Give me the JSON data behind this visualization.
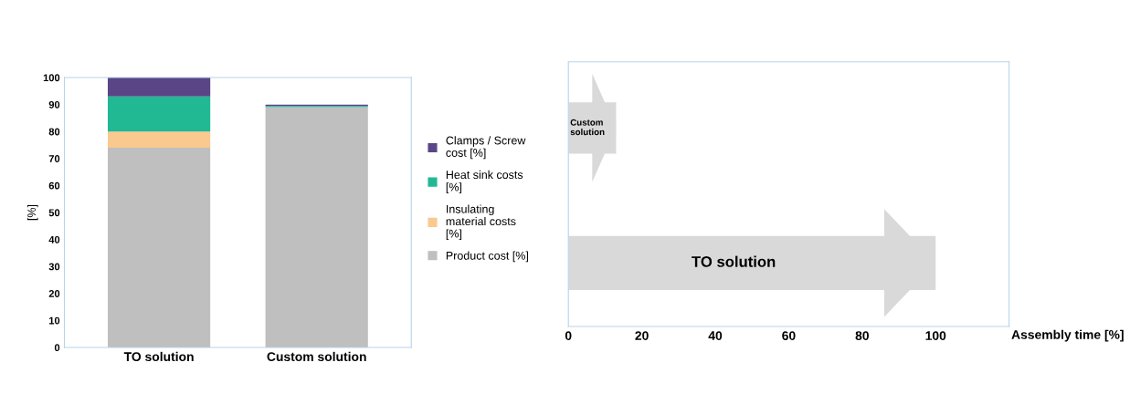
{
  "chart_data": [
    {
      "type": "bar",
      "stacked": true,
      "ylabel": "[%]",
      "categories": [
        "TO solution",
        "Custom solution"
      ],
      "ylim": [
        0,
        100
      ],
      "yticks": [
        0,
        10,
        20,
        30,
        40,
        50,
        60,
        70,
        80,
        90,
        100
      ],
      "legend": "right",
      "grid": false,
      "series": [
        {
          "name": "Product cost [%]",
          "color": "#bfbfbf",
          "values": [
            74,
            89
          ]
        },
        {
          "name": "Insulating material costs [%]",
          "color": "#f9c990",
          "values": [
            6,
            0
          ]
        },
        {
          "name": "Heat sink costs [%]",
          "color": "#20b994",
          "values": [
            13,
            0.5
          ]
        },
        {
          "name": "Clamps / Screw cost [%]",
          "color": "#5a4687",
          "values": [
            7,
            0.5
          ]
        }
      ]
    },
    {
      "type": "bar",
      "orientation": "horizontal",
      "xlabel": "Assembly time [%]",
      "categories": [
        "Custom solution",
        "TO solution"
      ],
      "values": [
        13,
        100
      ],
      "color": "#d9d9d9",
      "xlim": [
        0,
        120
      ],
      "xticks": [
        0,
        20,
        40,
        60,
        80,
        100
      ],
      "tick_labels": "x",
      "grid": false
    }
  ]
}
